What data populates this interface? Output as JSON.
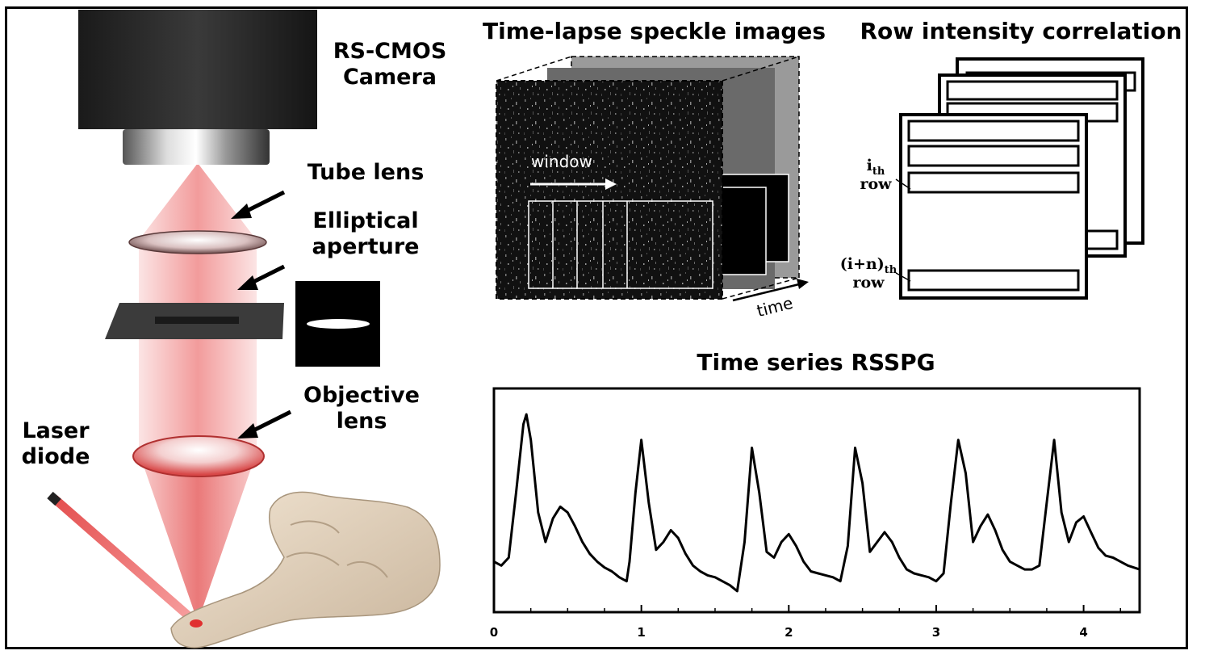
{
  "optics": {
    "camera_label": [
      "RS-CMOS",
      "Camera"
    ],
    "tube_lens_label": "Tube lens",
    "aperture_label": [
      "Elliptical",
      "aperture"
    ],
    "objective_label": [
      "Objective",
      "lens"
    ],
    "laser_label": [
      "Laser",
      "diode"
    ]
  },
  "speckle": {
    "title": "Time-lapse speckle images",
    "window_label": "window",
    "time_label": "time"
  },
  "correlation": {
    "title": "Row intensity correlation",
    "row_i_main": "i",
    "row_i_sub": "th",
    "row_i_word": "row",
    "row_in_main": "(i+n)",
    "row_in_sub": "th",
    "row_in_word": "row"
  },
  "colors": {
    "laser_red": "#e03030",
    "beam_red": "#f3a3a3",
    "frame": "#000000"
  },
  "chart_data": {
    "type": "line",
    "title": "Time series RSSPG",
    "xlabel": "",
    "ylabel": "",
    "xlim": [
      0,
      4.38
    ],
    "ylim": [
      0,
      1
    ],
    "x_ticks": [
      0,
      1,
      2,
      3,
      4
    ],
    "x_tick_labels": [
      "0",
      "1",
      "2",
      "3",
      "4"
    ],
    "grid": false,
    "series": [
      {
        "x": [
          0.0,
          0.05,
          0.1,
          0.15,
          0.2,
          0.22,
          0.25,
          0.3,
          0.35,
          0.4,
          0.45,
          0.5,
          0.55,
          0.6,
          0.65,
          0.7,
          0.75,
          0.8,
          0.85,
          0.9,
          0.92,
          0.96,
          1.0,
          1.05,
          1.1,
          1.15,
          1.2,
          1.25,
          1.3,
          1.35,
          1.4,
          1.45,
          1.5,
          1.55,
          1.6,
          1.65,
          1.7,
          1.75,
          1.8,
          1.85,
          1.9,
          1.95,
          2.0,
          2.05,
          2.1,
          2.15,
          2.2,
          2.25,
          2.3,
          2.35,
          2.4,
          2.45,
          2.5,
          2.55,
          2.6,
          2.65,
          2.7,
          2.75,
          2.8,
          2.85,
          2.9,
          2.95,
          3.0,
          3.05,
          3.1,
          3.15,
          3.2,
          3.25,
          3.3,
          3.35,
          3.4,
          3.45,
          3.5,
          3.55,
          3.6,
          3.65,
          3.7,
          3.75,
          3.8,
          3.85,
          3.9,
          3.95,
          4.0,
          4.05,
          4.1,
          4.15,
          4.2,
          4.25,
          4.3,
          4.38
        ],
        "y": [
          0.2,
          0.18,
          0.22,
          0.55,
          0.9,
          0.95,
          0.82,
          0.45,
          0.3,
          0.42,
          0.48,
          0.45,
          0.38,
          0.3,
          0.24,
          0.2,
          0.17,
          0.15,
          0.12,
          0.1,
          0.2,
          0.55,
          0.82,
          0.5,
          0.26,
          0.3,
          0.36,
          0.32,
          0.24,
          0.18,
          0.15,
          0.13,
          0.12,
          0.1,
          0.08,
          0.05,
          0.3,
          0.78,
          0.55,
          0.25,
          0.22,
          0.3,
          0.34,
          0.28,
          0.2,
          0.15,
          0.14,
          0.13,
          0.12,
          0.1,
          0.28,
          0.78,
          0.6,
          0.25,
          0.3,
          0.35,
          0.3,
          0.22,
          0.16,
          0.14,
          0.13,
          0.12,
          0.1,
          0.14,
          0.5,
          0.82,
          0.65,
          0.3,
          0.38,
          0.44,
          0.36,
          0.26,
          0.2,
          0.18,
          0.16,
          0.16,
          0.18,
          0.5,
          0.82,
          0.45,
          0.3,
          0.4,
          0.43,
          0.35,
          0.27,
          0.23,
          0.22,
          0.2,
          0.18,
          0.16
        ]
      }
    ]
  }
}
